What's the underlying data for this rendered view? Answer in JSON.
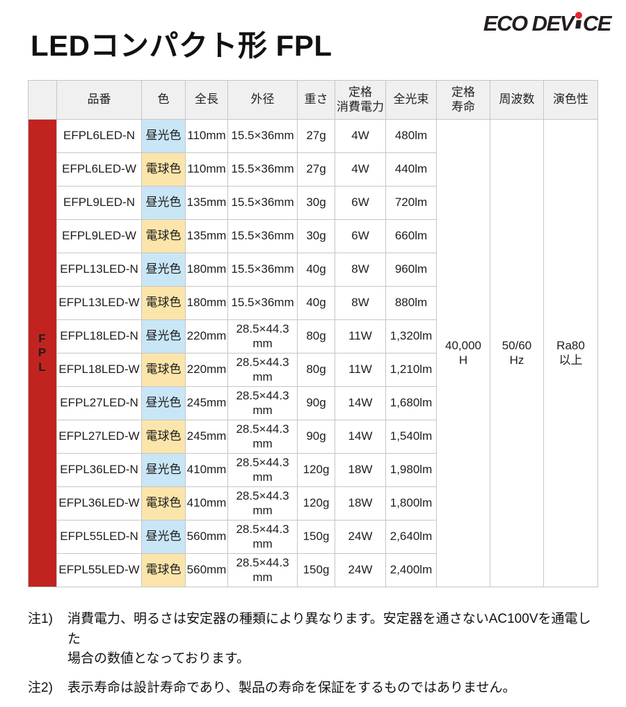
{
  "page": {
    "title": "LEDコンパクト形 FPL"
  },
  "logo": {
    "part1": "ECO DEV",
    "part2": "CE",
    "dot_color": "#e8232a"
  },
  "table": {
    "side_label": "F\nP\nL",
    "headers": [
      "品番",
      "色",
      "全長",
      "外径",
      "重さ",
      "定格\n消費電力",
      "全光束",
      "定格\n寿命",
      "周波数",
      "演色性"
    ],
    "rows": [
      {
        "model": "EFPL6LED-N",
        "color": "昼光色",
        "color_type": "daylight",
        "length": "110mm",
        "diameter": "15.5×36mm",
        "weight": "27g",
        "power": "4W",
        "flux": "480lm"
      },
      {
        "model": "EFPL6LED-W",
        "color": "電球色",
        "color_type": "warm",
        "length": "110mm",
        "diameter": "15.5×36mm",
        "weight": "27g",
        "power": "4W",
        "flux": "440lm"
      },
      {
        "model": "EFPL9LED-N",
        "color": "昼光色",
        "color_type": "daylight",
        "length": "135mm",
        "diameter": "15.5×36mm",
        "weight": "30g",
        "power": "6W",
        "flux": "720lm"
      },
      {
        "model": "EFPL9LED-W",
        "color": "電球色",
        "color_type": "warm",
        "length": "135mm",
        "diameter": "15.5×36mm",
        "weight": "30g",
        "power": "6W",
        "flux": "660lm"
      },
      {
        "model": "EFPL13LED-N",
        "color": "昼光色",
        "color_type": "daylight",
        "length": "180mm",
        "diameter": "15.5×36mm",
        "weight": "40g",
        "power": "8W",
        "flux": "960lm"
      },
      {
        "model": "EFPL13LED-W",
        "color": "電球色",
        "color_type": "warm",
        "length": "180mm",
        "diameter": "15.5×36mm",
        "weight": "40g",
        "power": "8W",
        "flux": "880lm"
      },
      {
        "model": "EFPL18LED-N",
        "color": "昼光色",
        "color_type": "daylight",
        "length": "220mm",
        "diameter": "28.5×44.3\nmm",
        "weight": "80g",
        "power": "11W",
        "flux": "1,320lm"
      },
      {
        "model": "EFPL18LED-W",
        "color": "電球色",
        "color_type": "warm",
        "length": "220mm",
        "diameter": "28.5×44.3\nmm",
        "weight": "80g",
        "power": "11W",
        "flux": "1,210lm"
      },
      {
        "model": "EFPL27LED-N",
        "color": "昼光色",
        "color_type": "daylight",
        "length": "245mm",
        "diameter": "28.5×44.3\nmm",
        "weight": "90g",
        "power": "14W",
        "flux": "1,680lm"
      },
      {
        "model": "EFPL27LED-W",
        "color": "電球色",
        "color_type": "warm",
        "length": "245mm",
        "diameter": "28.5×44.3\nmm",
        "weight": "90g",
        "power": "14W",
        "flux": "1,540lm"
      },
      {
        "model": "EFPL36LED-N",
        "color": "昼光色",
        "color_type": "daylight",
        "length": "410mm",
        "diameter": "28.5×44.3\nmm",
        "weight": "120g",
        "power": "18W",
        "flux": "1,980lm"
      },
      {
        "model": "EFPL36LED-W",
        "color": "電球色",
        "color_type": "warm",
        "length": "410mm",
        "diameter": "28.5×44.3\nmm",
        "weight": "120g",
        "power": "18W",
        "flux": "1,800lm"
      },
      {
        "model": "EFPL55LED-N",
        "color": "昼光色",
        "color_type": "daylight",
        "length": "560mm",
        "diameter": "28.5×44.3\nmm",
        "weight": "150g",
        "power": "24W",
        "flux": "2,640lm"
      },
      {
        "model": "EFPL55LED-W",
        "color": "電球色",
        "color_type": "warm",
        "length": "560mm",
        "diameter": "28.5×44.3\nmm",
        "weight": "150g",
        "power": "24W",
        "flux": "2,400lm"
      }
    ],
    "merged": {
      "rated_life": "40,000\nH",
      "frequency": "50/60\nHz",
      "color_rendering": "Ra80\n以上"
    }
  },
  "notes": [
    {
      "prefix": "注1)",
      "text": "消費電力、明るさは安定器の種類により異なります。安定器を通さないAC100Vを通電した\n場合の数値となっております。"
    },
    {
      "prefix": "注2)",
      "text": "表示寿命は設計寿命であり、製品の寿命を保証をするものではありません。"
    }
  ],
  "colors": {
    "accent_red": "#c1241f",
    "daylight_bg": "#c9e6f6",
    "warm_bg": "#fbe5aa",
    "header_bg": "#f0f0f0",
    "border": "#c6c6c6"
  }
}
